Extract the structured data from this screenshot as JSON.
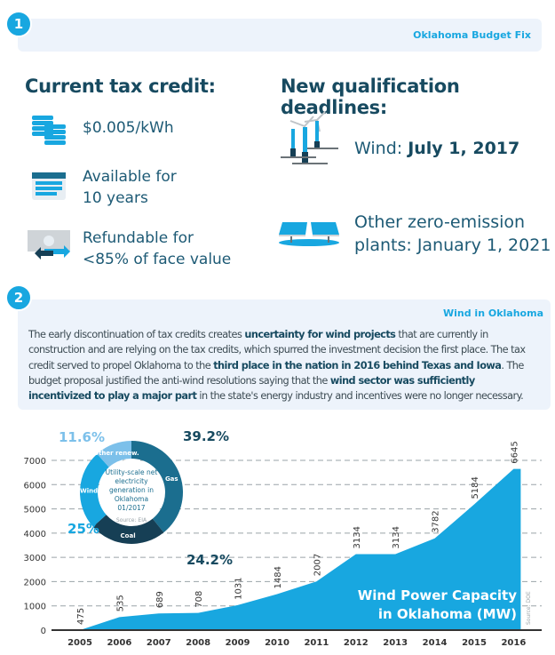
{
  "section1": {
    "number": "1",
    "title": "Oklahoma Budget Fix",
    "left_heading": "Current tax credit:",
    "items": [
      {
        "icon": "coins-icon",
        "line1": "$0.005/kWh"
      },
      {
        "icon": "calendar-icon",
        "line1": "Available for",
        "line2": "10 years"
      },
      {
        "icon": "refund-money-icon",
        "line1": "Refundable for",
        "line2": "<85% of face value"
      }
    ],
    "right_heading": "New qualification deadlines:",
    "deadlines": [
      {
        "icon": "wind-turbine-icon",
        "label": "Wind: ",
        "date": "July 1, 2017"
      },
      {
        "icon": "solar-panel-icon",
        "line1": "Other zero-emission",
        "line2": "plants: January 1, 2021"
      }
    ]
  },
  "section2": {
    "number": "2",
    "title": "Wind in Oklahoma",
    "p": [
      "The early discontinuation of tax credits creates ",
      "uncertainty for wind projects",
      " that are currently in construction and are relying on the tax credits, which spurred the investment decision the first place. The tax credit served to propel Oklahoma to the ",
      "third place in the nation in 2016 behind Texas and Iowa",
      ". The budget proposal justified the anti-wind resolutions saying that the ",
      "wind sector was sufficiently incentivized to play a major part",
      " in the state's energy industry and incentives were no longer necessary."
    ]
  },
  "chart_data": [
    {
      "type": "area",
      "title": "Wind Power Capacity",
      "title2": "in Oklahoma (MW)",
      "source": "Source: DOE",
      "x": [
        "2005",
        "2006",
        "2007",
        "2008",
        "2009",
        "2010",
        "2011",
        "2012",
        "2013",
        "2014",
        "2015",
        "2016"
      ],
      "values": [
        475,
        535,
        689,
        708,
        1031,
        1484,
        2007,
        3134,
        3134,
        3782,
        5184,
        6645
      ],
      "yticks": [
        "0",
        "1000",
        "2000",
        "3000",
        "4000",
        "5000",
        "6000",
        "7000"
      ],
      "ylim": [
        0,
        7000
      ],
      "grid": true,
      "color": "#18a7e0"
    },
    {
      "type": "pie",
      "title": "Utility-scale net electricity generation in Oklahoma 01/2017",
      "source": "Source: EIA",
      "slices": [
        {
          "name": "Gas",
          "value": 39.2,
          "label": "39.2%",
          "color": "#1b6e8f"
        },
        {
          "name": "Coal",
          "value": 24.2,
          "label": "24.2%",
          "color": "#163f55"
        },
        {
          "name": "Wind",
          "value": 25,
          "label": "25%",
          "color": "#18a7e0"
        },
        {
          "name": "Other renew.",
          "value": 11.6,
          "label": "11.6%",
          "color": "#7cc0ea"
        }
      ]
    }
  ]
}
